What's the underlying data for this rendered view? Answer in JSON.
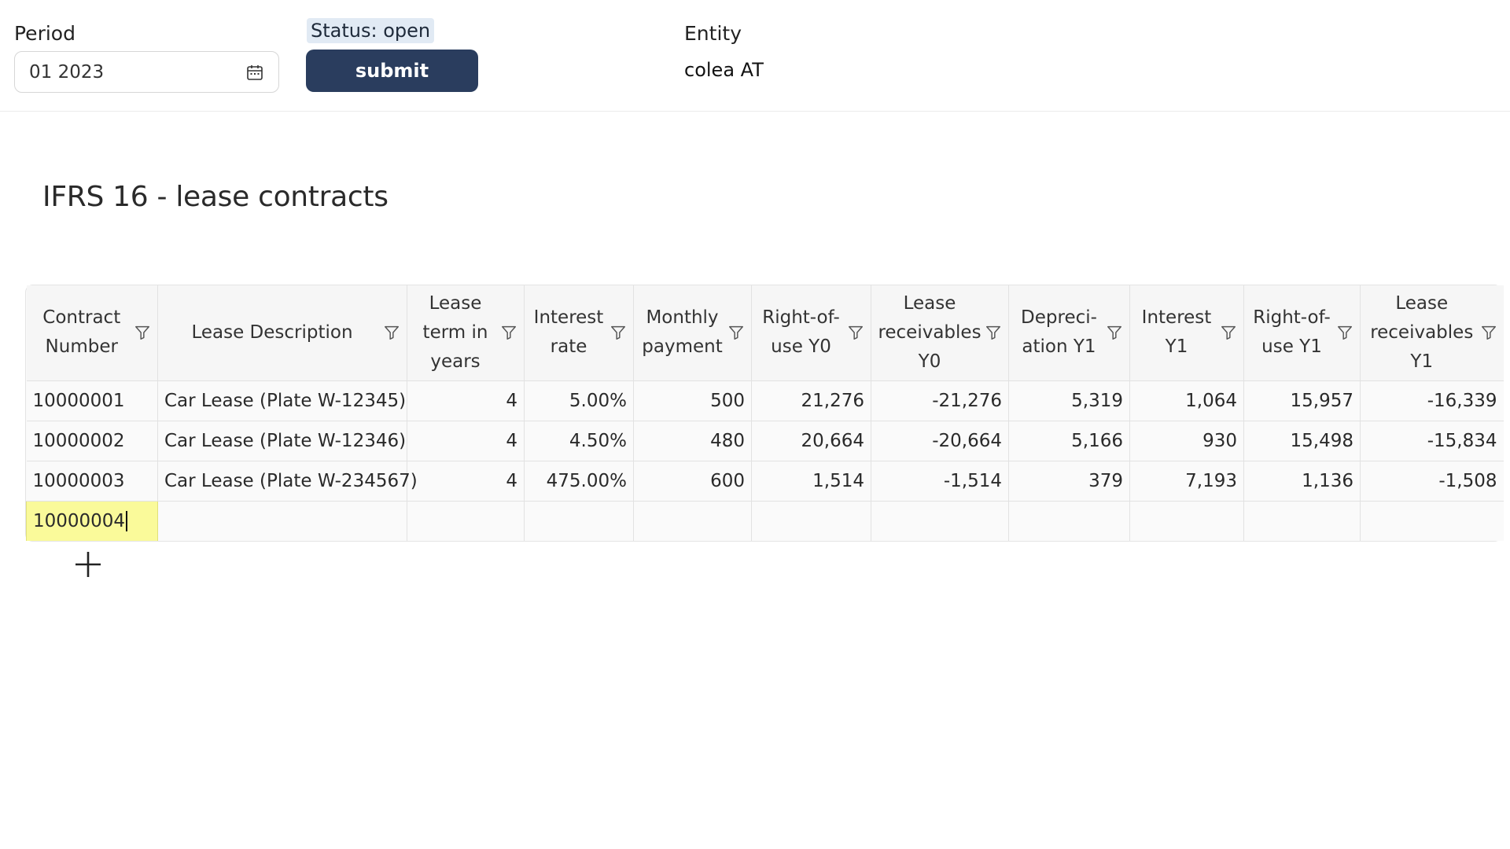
{
  "header": {
    "period_label": "Period",
    "period_value": "01 2023",
    "status_label": "Status: open",
    "submit_label": "submit",
    "entity_label": "Entity",
    "entity_value": "colea AT"
  },
  "page": {
    "title": "IFRS 16 - lease contracts"
  },
  "table": {
    "columns": [
      "Contract Number",
      "Lease Description",
      "Lease term in years",
      "Interest rate",
      "Monthly payment",
      "Right-of-use Y0",
      "Lease receivables Y0",
      "Depreci-ation Y1",
      "Interest Y1",
      "Right-of-use Y1",
      "Lease receivables Y1"
    ],
    "rows": [
      [
        "10000001",
        "Car Lease (Plate W-12345)",
        "4",
        "5.00%",
        "500",
        "21,276",
        "-21,276",
        "5,319",
        "1,064",
        "15,957",
        "-16,339"
      ],
      [
        "10000002",
        "Car Lease (Plate W-12346)",
        "4",
        "4.50%",
        "480",
        "20,664",
        "-20,664",
        "5,166",
        "930",
        "15,498",
        "-15,834"
      ],
      [
        "10000003",
        "Car Lease (Plate W-234567)",
        "4",
        "475.00%",
        "600",
        "1,514",
        "-1,514",
        "379",
        "7,193",
        "1,136",
        "-1,508"
      ]
    ],
    "new_row": {
      "contract_number": "10000004"
    }
  },
  "icons": {
    "calendar": "calendar-icon",
    "filter": "filter-icon",
    "add": "plus-icon"
  },
  "colors": {
    "submit_bg": "#2a3d5e",
    "status_bg": "#e1eaf4",
    "editing_cell_bg": "#fafa9a"
  }
}
